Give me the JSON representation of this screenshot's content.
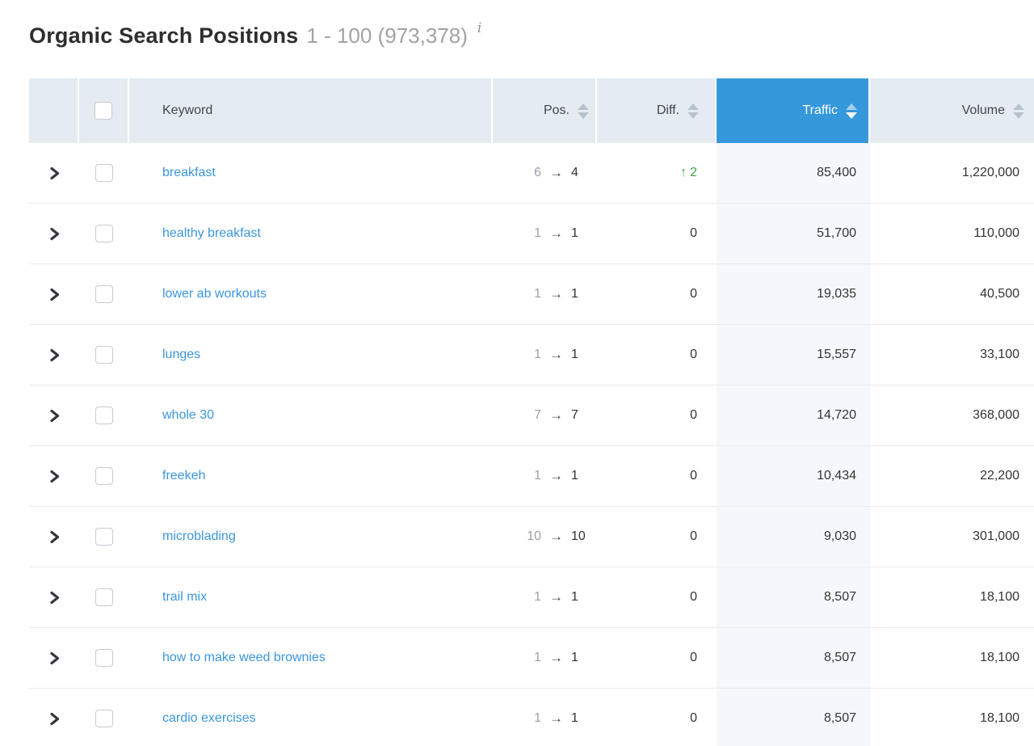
{
  "header": {
    "title": "Organic Search Positions",
    "range": "1 - 100 (973,378)",
    "info_icon": "i"
  },
  "table": {
    "columns": {
      "keyword": "Keyword",
      "pos": "Pos.",
      "diff": "Diff.",
      "traffic": "Traffic",
      "volume": "Volume"
    },
    "sort": {
      "active_column": "Traffic",
      "direction": "desc"
    },
    "rows": [
      {
        "keyword": "breakfast",
        "pos_old": "6",
        "pos_new": "4",
        "diff": "2",
        "diff_up": true,
        "traffic": "85,400",
        "volume": "1,220,000"
      },
      {
        "keyword": "healthy breakfast",
        "pos_old": "1",
        "pos_new": "1",
        "diff": "0",
        "diff_up": false,
        "traffic": "51,700",
        "volume": "110,000"
      },
      {
        "keyword": "lower ab workouts",
        "pos_old": "1",
        "pos_new": "1",
        "diff": "0",
        "diff_up": false,
        "traffic": "19,035",
        "volume": "40,500"
      },
      {
        "keyword": "lunges",
        "pos_old": "1",
        "pos_new": "1",
        "diff": "0",
        "diff_up": false,
        "traffic": "15,557",
        "volume": "33,100"
      },
      {
        "keyword": "whole 30",
        "pos_old": "7",
        "pos_new": "7",
        "diff": "0",
        "diff_up": false,
        "traffic": "14,720",
        "volume": "368,000"
      },
      {
        "keyword": "freekeh",
        "pos_old": "1",
        "pos_new": "1",
        "diff": "0",
        "diff_up": false,
        "traffic": "10,434",
        "volume": "22,200"
      },
      {
        "keyword": "microblading",
        "pos_old": "10",
        "pos_new": "10",
        "diff": "0",
        "diff_up": false,
        "traffic": "9,030",
        "volume": "301,000"
      },
      {
        "keyword": "trail mix",
        "pos_old": "1",
        "pos_new": "1",
        "diff": "0",
        "diff_up": false,
        "traffic": "8,507",
        "volume": "18,100"
      },
      {
        "keyword": "how to make weed brownies",
        "pos_old": "1",
        "pos_new": "1",
        "diff": "0",
        "diff_up": false,
        "traffic": "8,507",
        "volume": "18,100"
      },
      {
        "keyword": "cardio exercises",
        "pos_old": "1",
        "pos_new": "1",
        "diff": "0",
        "diff_up": false,
        "traffic": "8,507",
        "volume": "18,100"
      }
    ]
  },
  "colors": {
    "accent_blue": "#3598db",
    "link_blue": "#3a96dd",
    "positive_green": "#42a542",
    "header_bg": "#e4ebf1",
    "traffic_column_bg": "#f4f8fc",
    "muted_gray": "#9ba1a7"
  }
}
